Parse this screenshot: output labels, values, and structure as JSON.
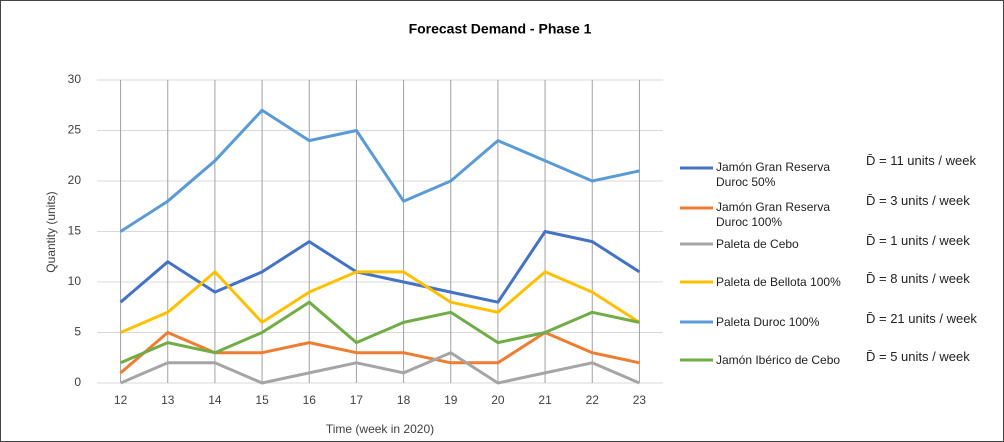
{
  "chart_data": {
    "type": "line",
    "title": "Forecast Demand - Phase 1",
    "x_label": "Time (week in 2020)",
    "y_label": "Quantity (units)",
    "categories": [
      "12",
      "13",
      "14",
      "15",
      "16",
      "17",
      "18",
      "19",
      "20",
      "21",
      "22",
      "23"
    ],
    "ylim": [
      0,
      30
    ],
    "yticks": [
      0,
      5,
      10,
      15,
      20,
      25,
      30
    ],
    "grid": true,
    "legend": "right",
    "series": [
      {
        "name": "Jamón Gran Reserva Duroc 50%",
        "color": "#4472c4",
        "values": [
          8,
          12,
          9,
          11,
          14,
          11,
          10,
          9,
          8,
          15,
          14,
          11
        ]
      },
      {
        "name": "Jamón Gran Reserva Duroc 100%",
        "color": "#ed7d31",
        "values": [
          1,
          5,
          3,
          3,
          4,
          3,
          3,
          2,
          2,
          5,
          3,
          2
        ]
      },
      {
        "name": "Paleta de Cebo",
        "color": "#a5a5a5",
        "values": [
          0,
          2,
          2,
          0,
          1,
          2,
          1,
          3,
          0,
          1,
          2,
          0
        ]
      },
      {
        "name": "Paleta de Bellota 100%",
        "color": "#ffc000",
        "values": [
          5,
          7,
          11,
          6,
          9,
          11,
          11,
          8,
          7,
          11,
          9,
          6
        ]
      },
      {
        "name": "Paleta Duroc 100%",
        "color": "#5b9bd5",
        "values": [
          15,
          18,
          22,
          27,
          24,
          25,
          18,
          20,
          24,
          22,
          20,
          21
        ]
      },
      {
        "name": "Jamón Ibérico de Cebo",
        "color": "#70ad47",
        "values": [
          2,
          4,
          3,
          5,
          8,
          4,
          6,
          7,
          4,
          5,
          7,
          6
        ]
      }
    ],
    "annotations": [
      "D̄ = 11 units / week",
      "D̄ = 3 units / week",
      "D̄ = 1 units / week",
      "D̄ = 8 units / week",
      "D̄ = 21 units / week",
      "D̄ = 5 units / week"
    ]
  }
}
